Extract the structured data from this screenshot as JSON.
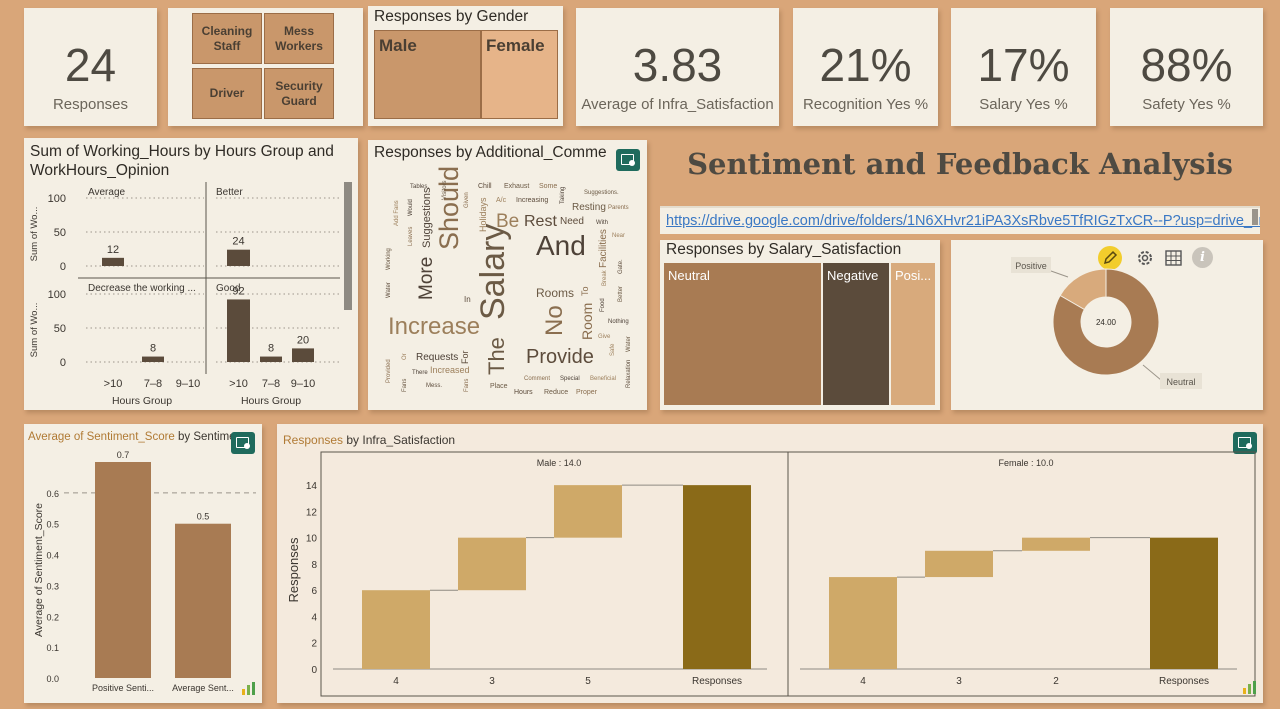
{
  "kpis": {
    "responses": {
      "value": "24",
      "label": "Responses"
    },
    "infra": {
      "value": "3.83",
      "label": "Average of Infra_Satisfaction"
    },
    "recognition": {
      "value": "21%",
      "label": "Recognition Yes %"
    },
    "salary": {
      "value": "17%",
      "label": "Salary Yes %"
    },
    "safety": {
      "value": "88%",
      "label": "Safety Yes %"
    }
  },
  "roles": [
    "Cleaning Staff",
    "Mess Workers",
    "Driver",
    "Security Guard"
  ],
  "gender": {
    "title": "Responses by Gender",
    "male": "Male",
    "female": "Female"
  },
  "header": {
    "title": "Sentiment and Feedback Analysis",
    "link": "https://drive.google.com/drive/folders/1N6XHvr21iPA3XsRbve5TfRIGzTxCR--P?usp=drive_link"
  },
  "wordcloud": {
    "title": "Responses by Additional_Comme"
  },
  "salary_sat": {
    "title": "Responses by Salary_Satisfaction",
    "labels": [
      "Neutral",
      "Negative",
      "Posi..."
    ]
  },
  "colors": {
    "dark": "#5b4b3b",
    "mid": "#a87b53",
    "light": "#d8aa7c",
    "gold": "#cfa968",
    "olive": "#8a6a18"
  },
  "chart_data": [
    {
      "type": "bar",
      "title": "Sum of Working_Hours by Hours Group and WorkHours_Opinion",
      "xlabel": "Hours Group",
      "ylabel": "Sum of Wo...",
      "ylim": [
        0,
        100
      ],
      "yticks": [
        0,
        50,
        100
      ],
      "panels": [
        {
          "name": "Average",
          "categories": [
            ">10"
          ],
          "values": [
            12
          ]
        },
        {
          "name": "Better",
          "categories": [
            ">10"
          ],
          "values": [
            24
          ]
        },
        {
          "name": "Decrease the working ...",
          "categories": [
            ">10",
            "7–8",
            "9–10"
          ],
          "values": [
            0,
            8,
            0
          ]
        },
        {
          "name": "Good",
          "categories": [
            ">10",
            "7–8",
            "9–10"
          ],
          "values": [
            92,
            8,
            20
          ]
        }
      ]
    },
    {
      "type": "pie",
      "donut": true,
      "center_label": "24.00",
      "categories": [
        "Positive",
        "Neutral"
      ],
      "values": [
        4,
        20
      ]
    },
    {
      "type": "bar",
      "title": "Average of Sentiment_Score by Sentimen",
      "title_prefix": "Average of Sentiment_Score",
      "title_suffix": " by Sentimen",
      "ylabel": "Average of Sentiment_Score",
      "categories": [
        "Positive Senti...",
        "Average Sent..."
      ],
      "values": [
        0.7,
        0.5
      ],
      "ylim": [
        0,
        0.7
      ],
      "yticks": [
        0.0,
        0.1,
        0.2,
        0.3,
        0.4,
        0.5,
        0.6
      ],
      "reference_line": 0.6
    },
    {
      "type": "bar",
      "subtype": "waterfall",
      "title": "Responses by Infra_Satisfaction",
      "title_prefix": "Responses",
      "title_suffix": " by Infra_Satisfaction",
      "ylabel": "Responses",
      "ylim": [
        0,
        15
      ],
      "yticks": [
        0,
        2,
        4,
        6,
        8,
        10,
        12,
        14
      ],
      "panels": [
        {
          "name": "Male",
          "total_label": "Male : 14.0",
          "categories": [
            "4",
            "3",
            "5",
            "Responses"
          ],
          "values": [
            6,
            4,
            4,
            14
          ]
        },
        {
          "name": "Female",
          "total_label": "Female : 10.0",
          "categories": [
            "4",
            "3",
            "2",
            "Responses"
          ],
          "values": [
            7,
            2,
            1,
            10
          ]
        }
      ]
    }
  ]
}
